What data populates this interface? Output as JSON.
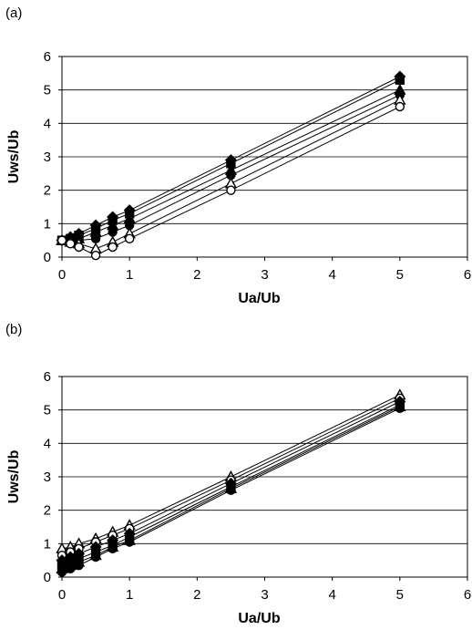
{
  "chart_data": [
    {
      "panel_label": "(a)",
      "type": "line",
      "title": "",
      "xlabel": "Ua/Ub",
      "ylabel": "Uws/Ub",
      "xlim": [
        0,
        6
      ],
      "ylim": [
        0,
        6
      ],
      "xticks": [
        "0",
        "1",
        "2",
        "3",
        "4",
        "5",
        "6"
      ],
      "yticks": [
        "0",
        "1",
        "2",
        "3",
        "4",
        "5",
        "6"
      ],
      "grid": "horizontal",
      "legend": "none",
      "x": [
        0,
        0.125,
        0.25,
        0.5,
        0.75,
        1,
        2.5,
        5
      ],
      "series": [
        {
          "marker": "diamond",
          "fill": "filled",
          "values": [
            0.5,
            0.6,
            0.7,
            0.95,
            1.2,
            1.4,
            2.9,
            5.4
          ]
        },
        {
          "marker": "square",
          "fill": "filled",
          "values": [
            0.5,
            0.55,
            0.65,
            0.85,
            1.1,
            1.3,
            2.8,
            5.3
          ]
        },
        {
          "marker": "triangle",
          "fill": "filled",
          "values": [
            0.5,
            0.5,
            0.55,
            0.75,
            0.95,
            1.15,
            2.6,
            5.0
          ]
        },
        {
          "marker": "circle",
          "fill": "filled",
          "values": [
            0.5,
            0.45,
            0.5,
            0.55,
            0.75,
            0.95,
            2.45,
            4.85
          ]
        },
        {
          "marker": "triangle",
          "fill": "open",
          "values": [
            0.5,
            0.45,
            0.4,
            0.25,
            0.45,
            0.7,
            2.2,
            4.7
          ]
        },
        {
          "marker": "circle",
          "fill": "open",
          "values": [
            0.5,
            0.4,
            0.3,
            0.05,
            0.3,
            0.55,
            2.0,
            4.5
          ]
        }
      ]
    },
    {
      "panel_label": "(b)",
      "type": "line",
      "title": "",
      "xlabel": "Ua/Ub",
      "ylabel": "Uws/Ub",
      "xlim": [
        0,
        6
      ],
      "ylim": [
        0,
        6
      ],
      "xticks": [
        "0",
        "1",
        "2",
        "3",
        "4",
        "5",
        "6"
      ],
      "yticks": [
        "0",
        "1",
        "2",
        "3",
        "4",
        "5",
        "6"
      ],
      "grid": "horizontal",
      "legend": "none",
      "x": [
        0,
        0.125,
        0.25,
        0.5,
        0.75,
        1,
        2.5,
        5
      ],
      "series": [
        {
          "marker": "triangle",
          "fill": "open",
          "values": [
            0.85,
            0.9,
            1.0,
            1.15,
            1.35,
            1.55,
            3.0,
            5.45
          ]
        },
        {
          "marker": "circle",
          "fill": "open",
          "values": [
            0.65,
            0.75,
            0.85,
            1.05,
            1.25,
            1.45,
            2.9,
            5.35
          ]
        },
        {
          "marker": "diamond",
          "fill": "filled",
          "values": [
            0.5,
            0.6,
            0.7,
            0.9,
            1.1,
            1.3,
            2.8,
            5.25
          ]
        },
        {
          "marker": "square",
          "fill": "filled",
          "values": [
            0.35,
            0.45,
            0.55,
            0.75,
            0.95,
            1.2,
            2.7,
            5.15
          ]
        },
        {
          "marker": "triangle",
          "fill": "filled",
          "values": [
            0.25,
            0.35,
            0.45,
            0.65,
            0.9,
            1.1,
            2.65,
            5.1
          ]
        },
        {
          "marker": "circle",
          "fill": "filled",
          "values": [
            0.15,
            0.25,
            0.35,
            0.6,
            0.85,
            1.05,
            2.6,
            5.05
          ]
        }
      ]
    }
  ]
}
